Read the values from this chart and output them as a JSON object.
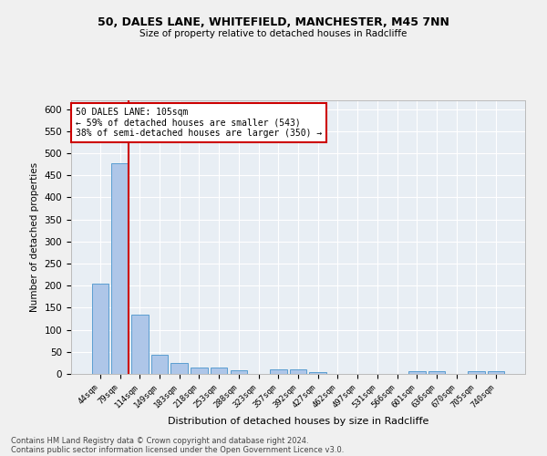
{
  "title_line1": "50, DALES LANE, WHITEFIELD, MANCHESTER, M45 7NN",
  "title_line2": "Size of property relative to detached houses in Radcliffe",
  "xlabel": "Distribution of detached houses by size in Radcliffe",
  "ylabel": "Number of detached properties",
  "bar_labels": [
    "44sqm",
    "79sqm",
    "114sqm",
    "149sqm",
    "183sqm",
    "218sqm",
    "253sqm",
    "288sqm",
    "323sqm",
    "357sqm",
    "392sqm",
    "427sqm",
    "462sqm",
    "497sqm",
    "531sqm",
    "566sqm",
    "601sqm",
    "636sqm",
    "670sqm",
    "705sqm",
    "740sqm"
  ],
  "bar_values": [
    204,
    477,
    135,
    44,
    25,
    15,
    14,
    8,
    0,
    10,
    10,
    5,
    0,
    0,
    0,
    0,
    6,
    6,
    0,
    6,
    6
  ],
  "bar_color": "#aec6e8",
  "bar_edge_color": "#5a9ed1",
  "vline_color": "#cc0000",
  "annotation_text": "50 DALES LANE: 105sqm\n← 59% of detached houses are smaller (543)\n38% of semi-detached houses are larger (350) →",
  "annotation_box_color": "#ffffff",
  "annotation_box_edge_color": "#cc0000",
  "ylim": [
    0,
    620
  ],
  "yticks": [
    0,
    50,
    100,
    150,
    200,
    250,
    300,
    350,
    400,
    450,
    500,
    550,
    600
  ],
  "bg_color": "#e8eef4",
  "fig_bg_color": "#f0f0f0",
  "footer_line1": "Contains HM Land Registry data © Crown copyright and database right 2024.",
  "footer_line2": "Contains public sector information licensed under the Open Government Licence v3.0."
}
